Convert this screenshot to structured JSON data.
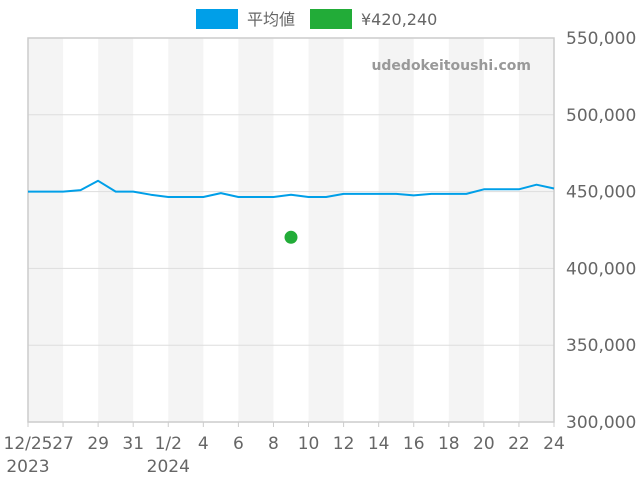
{
  "chart_data": {
    "type": "line",
    "watermark": "udedokeitoushi.com",
    "x_start": "2023-12-25",
    "x_end": "2024-01-24",
    "x_tick_labels": [
      {
        "date": "2023-12-25",
        "label": "12/25",
        "sub": "2023"
      },
      {
        "date": "2023-12-27",
        "label": "27"
      },
      {
        "date": "2023-12-29",
        "label": "29"
      },
      {
        "date": "2023-12-31",
        "label": "31"
      },
      {
        "date": "2024-01-02",
        "label": "1/2",
        "sub": "2024"
      },
      {
        "date": "2024-01-04",
        "label": "4"
      },
      {
        "date": "2024-01-06",
        "label": "6"
      },
      {
        "date": "2024-01-08",
        "label": "8"
      },
      {
        "date": "2024-01-10",
        "label": "10"
      },
      {
        "date": "2024-01-12",
        "label": "12"
      },
      {
        "date": "2024-01-14",
        "label": "14"
      },
      {
        "date": "2024-01-16",
        "label": "16"
      },
      {
        "date": "2024-01-18",
        "label": "18"
      },
      {
        "date": "2024-01-20",
        "label": "20"
      },
      {
        "date": "2024-01-22",
        "label": "22"
      },
      {
        "date": "2024-01-24",
        "label": "24"
      }
    ],
    "y_tick_labels": [
      "300,000",
      "350,000",
      "400,000",
      "450,000",
      "500,000",
      "550,000"
    ],
    "y_ticks": [
      300000,
      350000,
      400000,
      450000,
      500000,
      550000
    ],
    "ylim": [
      300000,
      550000
    ],
    "y_axis_side": "right",
    "grid": true,
    "legend_position": "top-center",
    "series": [
      {
        "name": "平均値",
        "type": "line",
        "color": "#009FE8",
        "points": [
          {
            "x": "2023-12-25",
            "y": 450000
          },
          {
            "x": "2023-12-26",
            "y": 450000
          },
          {
            "x": "2023-12-27",
            "y": 450000
          },
          {
            "x": "2023-12-28",
            "y": 451000
          },
          {
            "x": "2023-12-29",
            "y": 457000
          },
          {
            "x": "2023-12-30",
            "y": 450000
          },
          {
            "x": "2023-12-31",
            "y": 450000
          },
          {
            "x": "2024-01-01",
            "y": 448000
          },
          {
            "x": "2024-01-02",
            "y": 446500
          },
          {
            "x": "2024-01-03",
            "y": 446500
          },
          {
            "x": "2024-01-04",
            "y": 446500
          },
          {
            "x": "2024-01-05",
            "y": 449000
          },
          {
            "x": "2024-01-06",
            "y": 446500
          },
          {
            "x": "2024-01-07",
            "y": 446500
          },
          {
            "x": "2024-01-08",
            "y": 446500
          },
          {
            "x": "2024-01-09",
            "y": 448000
          },
          {
            "x": "2024-01-10",
            "y": 446500
          },
          {
            "x": "2024-01-11",
            "y": 446500
          },
          {
            "x": "2024-01-12",
            "y": 448500
          },
          {
            "x": "2024-01-13",
            "y": 448500
          },
          {
            "x": "2024-01-14",
            "y": 448500
          },
          {
            "x": "2024-01-15",
            "y": 448500
          },
          {
            "x": "2024-01-16",
            "y": 447500
          },
          {
            "x": "2024-01-17",
            "y": 448500
          },
          {
            "x": "2024-01-18",
            "y": 448500
          },
          {
            "x": "2024-01-19",
            "y": 448500
          },
          {
            "x": "2024-01-20",
            "y": 451500
          },
          {
            "x": "2024-01-21",
            "y": 451500
          },
          {
            "x": "2024-01-22",
            "y": 451500
          },
          {
            "x": "2024-01-23",
            "y": 454500
          },
          {
            "x": "2024-01-24",
            "y": 452000
          }
        ]
      },
      {
        "name": "¥420,240",
        "type": "scatter",
        "color": "#22AC38",
        "points": [
          {
            "x": "2024-01-09",
            "y": 420240
          }
        ]
      }
    ]
  }
}
